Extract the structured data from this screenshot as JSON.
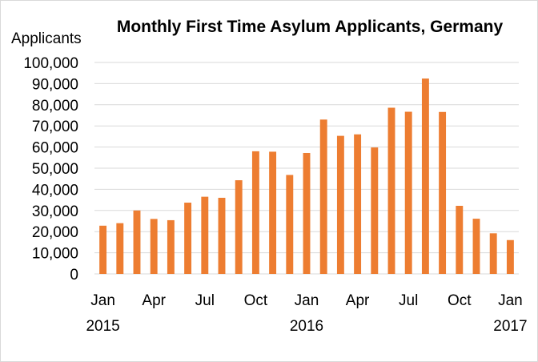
{
  "chart_data": {
    "type": "bar",
    "title": "Monthly First Time Asylum Applicants, Germany",
    "ylabel": "Applicants",
    "xlabel": "",
    "ylim": [
      0,
      100000
    ],
    "yticks": [
      "0",
      "10,000",
      "20,000",
      "30,000",
      "40,000",
      "50,000",
      "60,000",
      "70,000",
      "80,000",
      "90,000",
      "100,000"
    ],
    "grid": true,
    "legend": "none",
    "bar_color": "#ed7d31",
    "categories": [
      "2015-01",
      "2015-02",
      "2015-03",
      "2015-04",
      "2015-05",
      "2015-06",
      "2015-07",
      "2015-08",
      "2015-09",
      "2015-10",
      "2015-11",
      "2015-12",
      "2016-01",
      "2016-02",
      "2016-03",
      "2016-04",
      "2016-05",
      "2016-06",
      "2016-07",
      "2016-08",
      "2016-09",
      "2016-10",
      "2016-11",
      "2016-12",
      "2017-01"
    ],
    "values": [
      22800,
      24000,
      30000,
      26000,
      25400,
      33700,
      36500,
      36000,
      44300,
      58000,
      57800,
      46800,
      57200,
      73000,
      65300,
      66000,
      59800,
      78600,
      76700,
      92400,
      76600,
      32200,
      26100,
      19200,
      16000
    ],
    "month_labels": [
      {
        "index": 0,
        "text": "Jan"
      },
      {
        "index": 3,
        "text": "Apr"
      },
      {
        "index": 6,
        "text": "Jul"
      },
      {
        "index": 9,
        "text": "Oct"
      },
      {
        "index": 12,
        "text": "Jan"
      },
      {
        "index": 15,
        "text": "Apr"
      },
      {
        "index": 18,
        "text": "Jul"
      },
      {
        "index": 21,
        "text": "Oct"
      },
      {
        "index": 24,
        "text": "Jan"
      }
    ],
    "year_labels": [
      {
        "index": 0,
        "text": "2015"
      },
      {
        "index": 12,
        "text": "2016"
      },
      {
        "index": 24,
        "text": "2017"
      }
    ]
  }
}
